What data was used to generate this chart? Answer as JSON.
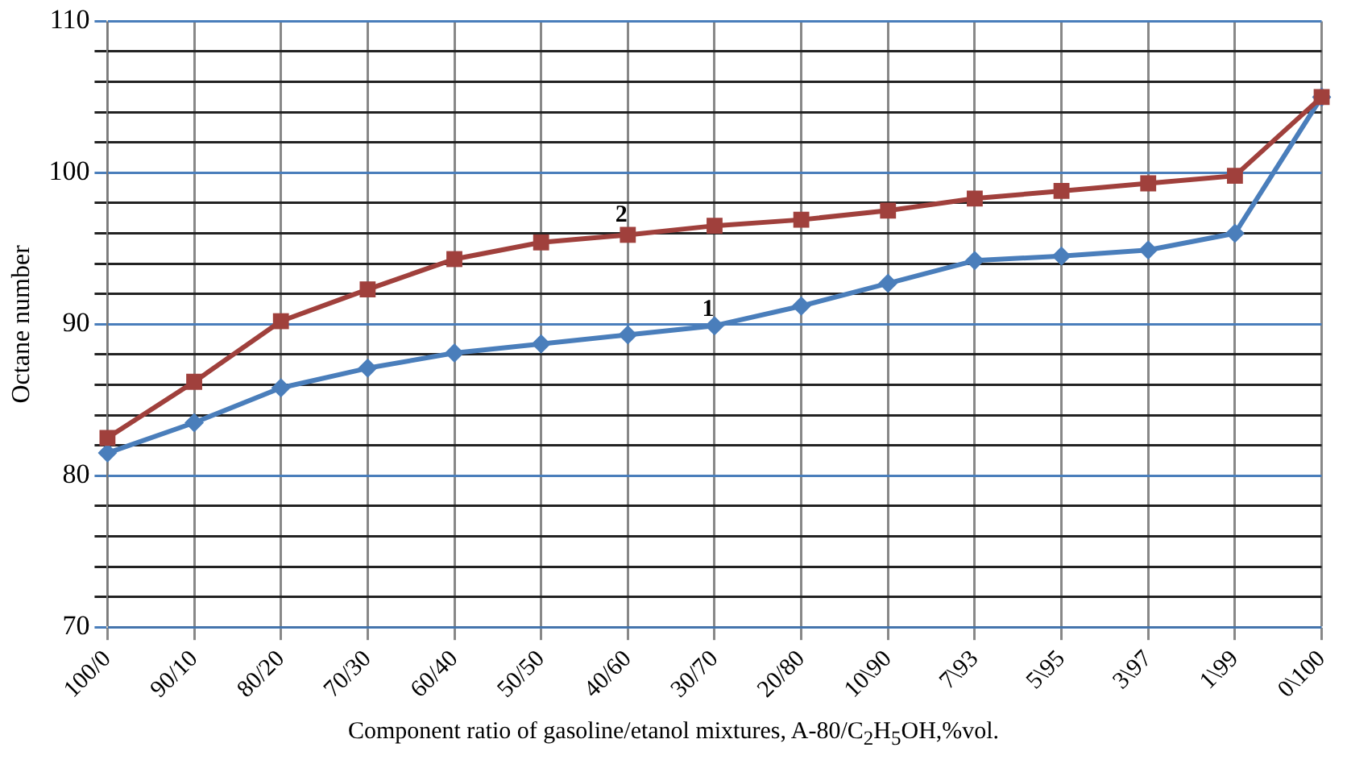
{
  "chart_data": {
    "type": "line",
    "xlabel": "Component ratio of gasoline/etanol mixtures, A-80/C$_{2}$H$_{5}$OH,%vol.",
    "ylabel": "Octane number",
    "categories": [
      "100/0",
      "90/10",
      "80/20",
      "70/30",
      "60/40",
      "50/50",
      "40/60",
      "30/70",
      "20/80",
      "10\\90",
      "7\\93",
      "5\\95",
      "3\\97",
      "1\\99",
      "0\\100"
    ],
    "series": [
      {
        "name": "1",
        "color": "#4a7ebb",
        "marker": "diamond",
        "values": [
          81.5,
          83.5,
          85.8,
          87.1,
          88.1,
          88.7,
          89.3,
          89.9,
          91.2,
          92.7,
          94.2,
          94.5,
          94.9,
          96.0,
          105
        ]
      },
      {
        "name": "2",
        "color": "#a0403c",
        "marker": "square",
        "values": [
          82.5,
          86.2,
          90.2,
          92.3,
          94.3,
          95.4,
          95.9,
          96.5,
          96.9,
          97.5,
          98.3,
          98.8,
          99.3,
          99.8,
          105
        ]
      }
    ],
    "ylim": [
      70,
      110
    ],
    "yticks": [
      70,
      {
        "value": 72,
        "label": null
      },
      {
        "value": 74,
        "label": null
      },
      {
        "value": 76,
        "label": null
      },
      {
        "value": 78,
        "label": null
      },
      80,
      {
        "value": 82,
        "label": null
      },
      {
        "value": 84,
        "label": null
      },
      {
        "value": 86,
        "label": null
      },
      {
        "value": 88,
        "label": null
      },
      90,
      {
        "value": 92,
        "label": null
      },
      {
        "value": 94,
        "label": null
      },
      {
        "value": 96,
        "label": null
      },
      {
        "value": 98,
        "label": null
      },
      100,
      {
        "value": 102,
        "label": null
      },
      {
        "value": 104,
        "label": null
      },
      {
        "value": 106,
        "label": null
      },
      {
        "value": 108,
        "label": null
      },
      110
    ],
    "grid": true,
    "legend": false,
    "line_style": "solid"
  }
}
